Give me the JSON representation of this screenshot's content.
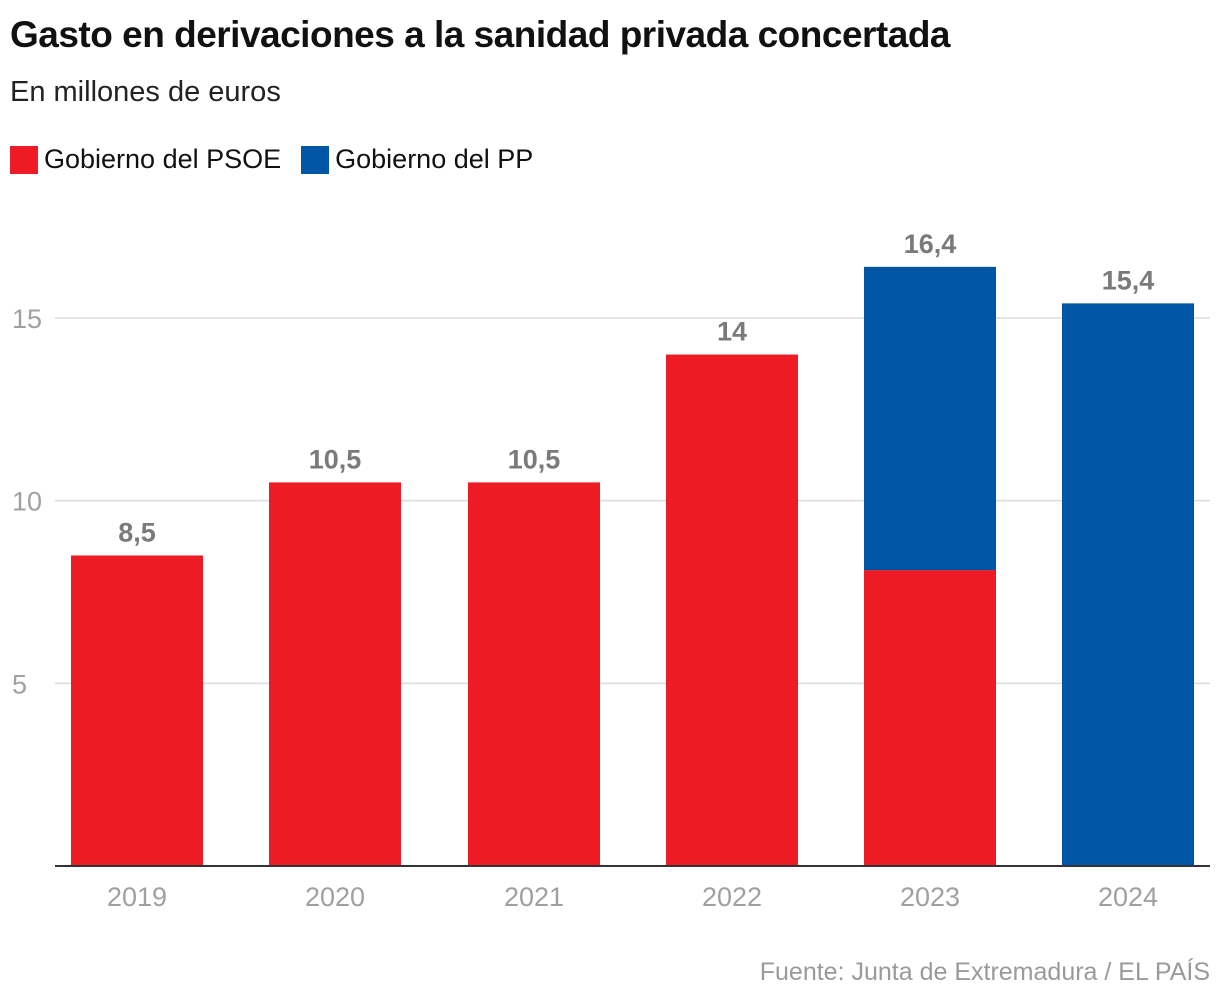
{
  "title": "Gasto en derivaciones a la sanidad privada concertada",
  "subtitle": "En millones de euros",
  "source": "Fuente: Junta de Extremadura / EL PAÍS",
  "chart_data": {
    "type": "bar",
    "stacked": true,
    "categories": [
      "2019",
      "2020",
      "2021",
      "2022",
      "2023",
      "2024"
    ],
    "series": [
      {
        "name": "Gobierno del PSOE",
        "color": "#ed1c24",
        "values": [
          8.5,
          10.5,
          10.5,
          14,
          8.1,
          0
        ]
      },
      {
        "name": "Gobierno del PP",
        "color": "#0055a5",
        "values": [
          0,
          0,
          0,
          0,
          8.3,
          15.4
        ]
      }
    ],
    "data_labels": [
      "8,5",
      "10,5",
      "10,5",
      "14",
      "16,4",
      "15,4"
    ],
    "yticks": [
      5,
      10,
      15
    ],
    "ytick_labels": [
      "5",
      "10",
      "15"
    ],
    "ylim": [
      0,
      17.5
    ],
    "grid": true,
    "legend": "top-left"
  }
}
